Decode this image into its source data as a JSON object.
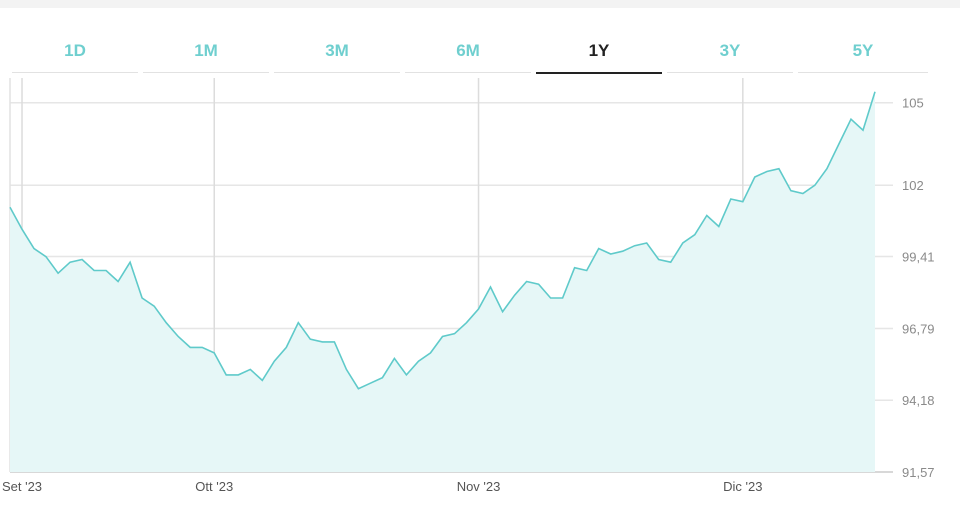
{
  "tabs": [
    {
      "label": "1D",
      "active": false
    },
    {
      "label": "1M",
      "active": false
    },
    {
      "label": "3M",
      "active": false
    },
    {
      "label": "6M",
      "active": false
    },
    {
      "label": "1Y",
      "active": true
    },
    {
      "label": "3Y",
      "active": false
    },
    {
      "label": "5Y",
      "active": false
    }
  ],
  "colors": {
    "line": "#5fcaca",
    "fill": "#e6f7f7",
    "tab_inactive": "#6fcfcf",
    "tab_active": "#222222",
    "grid": "#e6e6e6"
  },
  "chart_data": {
    "type": "area",
    "x_tick_labels": [
      "Set '23",
      "Ott '23",
      "Nov '23",
      "Dic '23"
    ],
    "x_tick_positions": [
      1.0,
      17.0,
      39.0,
      61.0
    ],
    "y_ticks": [
      91.57,
      94.18,
      96.79,
      99.41,
      102,
      105
    ],
    "y_tick_labels": [
      "91,57",
      "94,18",
      "96,79",
      "99,41",
      "102",
      "105"
    ],
    "ylim": [
      91.57,
      105.9
    ],
    "xlim": [
      0,
      73.5
    ],
    "grid": true,
    "values": [
      101.2,
      100.4,
      99.7,
      99.4,
      98.8,
      99.2,
      99.3,
      98.9,
      98.9,
      98.5,
      99.2,
      97.9,
      97.6,
      97.0,
      96.5,
      96.1,
      96.1,
      95.9,
      95.1,
      95.1,
      95.3,
      94.9,
      95.6,
      96.1,
      97.0,
      96.4,
      96.3,
      96.3,
      95.3,
      94.6,
      94.8,
      95.0,
      95.7,
      95.1,
      95.6,
      95.9,
      96.5,
      96.6,
      97.0,
      97.5,
      98.3,
      97.4,
      98.0,
      98.5,
      98.4,
      97.9,
      97.9,
      99.0,
      98.9,
      99.7,
      99.5,
      99.6,
      99.8,
      99.9,
      99.3,
      99.2,
      99.9,
      100.2,
      100.9,
      100.5,
      101.5,
      101.4,
      102.3,
      102.5,
      102.6,
      101.8,
      101.7,
      102.0,
      102.6,
      103.5,
      104.4,
      104.0,
      105.4
    ]
  }
}
